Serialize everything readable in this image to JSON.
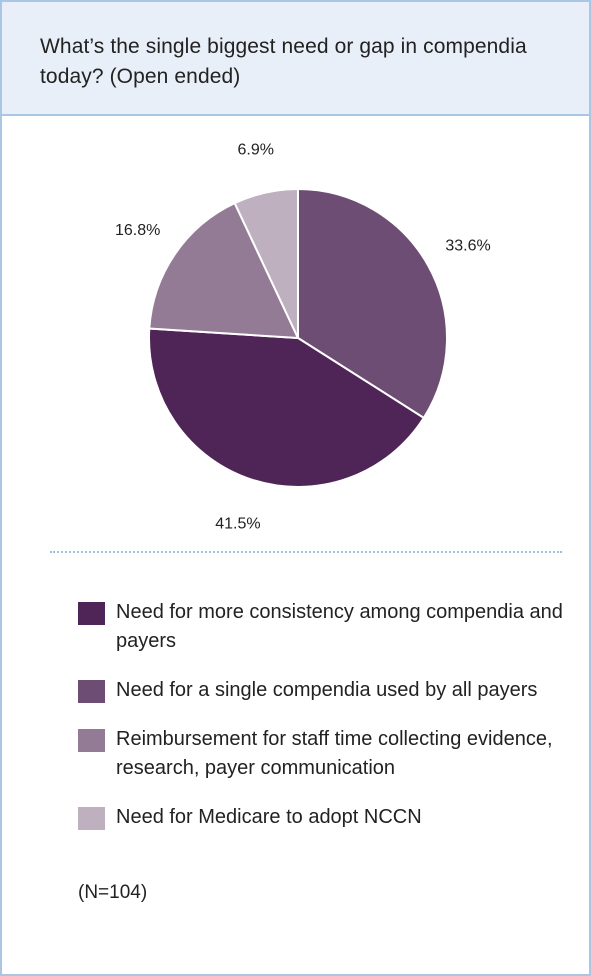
{
  "title": "What’s the single biggest need or gap in compendia today? (Open ended)",
  "chart_data": {
    "type": "pie",
    "slices": [
      {
        "label": "Need for a single compendia used by all payers",
        "value": 33.6,
        "value_label": "33.6%",
        "color": "#6e4d74"
      },
      {
        "label": "Need for more consistency among compendia and payers",
        "value": 41.5,
        "value_label": "41.5%",
        "color": "#4f2557"
      },
      {
        "label": "Reimbursement for staff time collecting evidence, research, payer communication",
        "value": 16.8,
        "value_label": "16.8%",
        "color": "#937b95"
      },
      {
        "label": "Need for Medicare to adopt NCCN",
        "value": 6.9,
        "value_label": "6.9%",
        "color": "#bfb0c0"
      }
    ],
    "start_angle": "12 o'clock",
    "direction": "clockwise"
  },
  "legend": [
    {
      "text": "Need for more consistency among compendia and payers",
      "color": "#4f2557"
    },
    {
      "text": "Need for a single compendia used by all payers",
      "color": "#6e4d74"
    },
    {
      "text": "Reimbursement for staff time collecting evidence, research, payer communication",
      "color": "#937b95"
    },
    {
      "text": "Need for Medicare to adopt NCCN",
      "color": "#bfb0c0"
    }
  ],
  "sample_size": "(N=104)"
}
